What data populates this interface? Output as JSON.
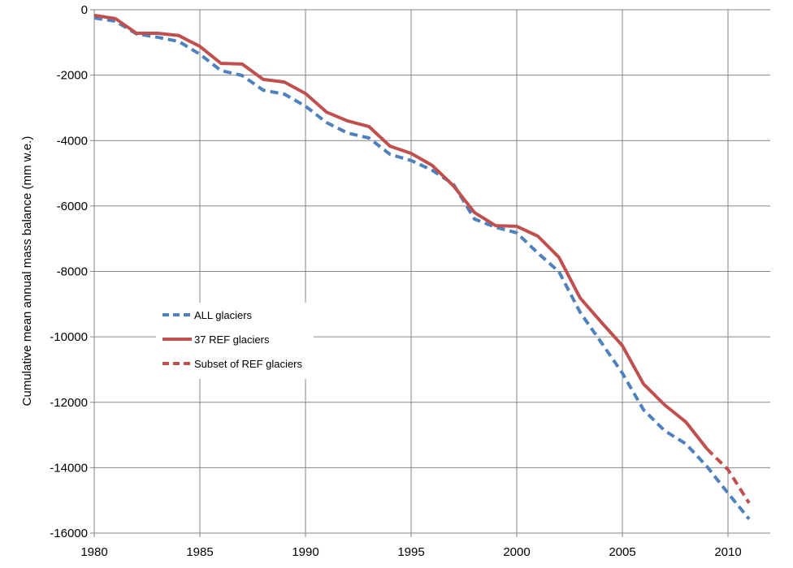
{
  "chart_data": {
    "type": "line",
    "title": "",
    "xlabel": "",
    "ylabel": "Cumulative mean annual mass balance (mm w.e.)",
    "xlim": [
      1980,
      2012
    ],
    "ylim": [
      -16000,
      0
    ],
    "xticks": [
      1980,
      1985,
      1990,
      1995,
      2000,
      2005,
      2010
    ],
    "yticks": [
      0,
      -2000,
      -4000,
      -6000,
      -8000,
      -10000,
      -12000,
      -14000,
      -16000
    ],
    "grid": true,
    "legend_placement": "center-left",
    "series": [
      {
        "name": "ALL glaciers",
        "color": "#4f81bd",
        "style": "dashed",
        "x": [
          1980,
          1981,
          1982,
          1983,
          1984,
          1985,
          1986,
          1987,
          1988,
          1989,
          1990,
          1991,
          1992,
          1993,
          1994,
          1995,
          1996,
          1997,
          1998,
          1999,
          2000,
          2001,
          2002,
          2003,
          2004,
          2005,
          2006,
          2007,
          2008,
          2009,
          2010,
          2011
        ],
        "values": [
          -250,
          -350,
          -740,
          -840,
          -970,
          -1360,
          -1860,
          -2010,
          -2460,
          -2580,
          -2950,
          -3450,
          -3770,
          -3920,
          -4420,
          -4610,
          -4910,
          -5330,
          -6400,
          -6650,
          -6820,
          -7440,
          -8010,
          -9250,
          -10170,
          -11110,
          -12230,
          -12870,
          -13270,
          -13960,
          -14780,
          -15570
        ]
      },
      {
        "name": "37 REF glaciers",
        "color": "#c0504d",
        "style": "solid",
        "x": [
          1980,
          1981,
          1982,
          1983,
          1984,
          1985,
          1986,
          1987,
          1988,
          1989,
          1990,
          1991,
          1992,
          1993,
          1994,
          1995,
          1996,
          1997,
          1998,
          1999,
          2000,
          2001,
          2002,
          2003,
          2004,
          2005,
          2006,
          2007,
          2008,
          2009
        ],
        "values": [
          -170,
          -270,
          -720,
          -720,
          -790,
          -1120,
          -1640,
          -1660,
          -2130,
          -2210,
          -2560,
          -3130,
          -3400,
          -3570,
          -4170,
          -4390,
          -4760,
          -5380,
          -6200,
          -6600,
          -6620,
          -6920,
          -7570,
          -8810,
          -9550,
          -10270,
          -11440,
          -12080,
          -12600,
          -13420
        ]
      },
      {
        "name": "Subset of REF glaciers",
        "color": "#c0504d",
        "style": "dashed",
        "x": [
          2009,
          2010,
          2011
        ],
        "values": [
          -13420,
          -14060,
          -15080
        ]
      }
    ]
  }
}
